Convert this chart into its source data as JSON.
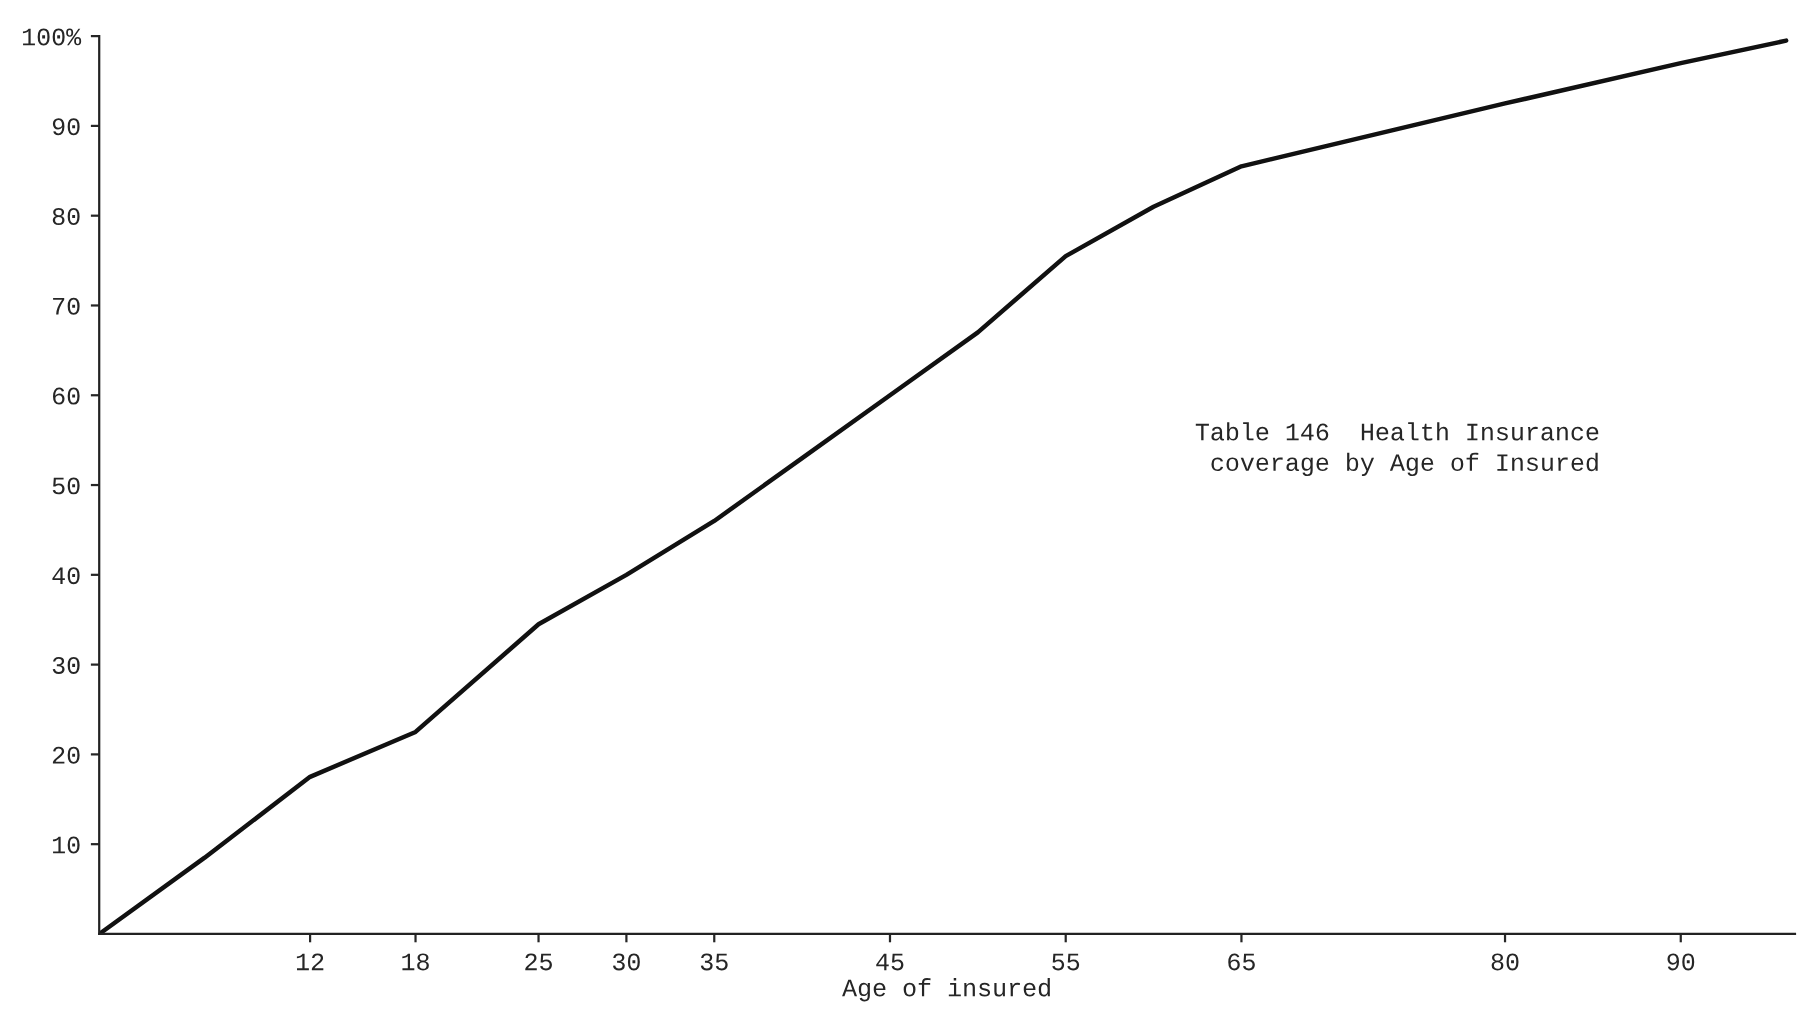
{
  "chart_data": {
    "type": "line",
    "xlabel": "Age of insured",
    "annotations": [
      "Table 146  Health Insurance\n coverage by Age of Insured"
    ],
    "x": [
      0,
      6,
      12,
      18,
      25,
      30,
      35,
      40,
      45,
      50,
      55,
      60,
      65,
      80,
      90,
      96
    ],
    "series": [
      {
        "color": "#111111",
        "values": [
          0,
          8.5,
          17.5,
          22.5,
          34.5,
          40,
          46,
          53,
          60,
          67,
          75.5,
          81,
          85.5,
          92.5,
          97,
          99.5
        ]
      }
    ],
    "xlim": [
      0,
      96.5
    ],
    "ylim": [
      0,
      100
    ],
    "xticks": [
      12,
      18,
      25,
      30,
      35,
      45,
      55,
      65,
      80,
      90
    ],
    "yticks": [
      10,
      20,
      30,
      40,
      50,
      60,
      70,
      80,
      90,
      {
        "value": 100,
        "label": "100%"
      }
    ],
    "grid": false
  }
}
